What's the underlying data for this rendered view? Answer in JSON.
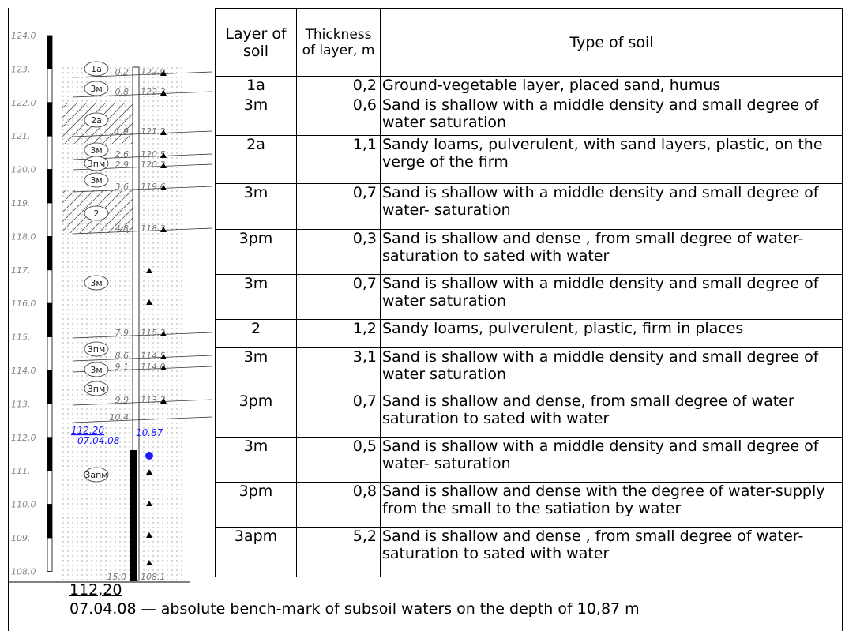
{
  "diagram": {
    "elevations": [
      "124,0",
      "123.",
      "122,0",
      "121,",
      "120,0",
      "119.",
      "118,0",
      "117.",
      "116,0",
      "115.",
      "114,0",
      "113.",
      "112,0",
      "111,",
      "110,0",
      "109.",
      "108,0"
    ],
    "layers": [
      "1a",
      "3м",
      "2a",
      "3м",
      "3пм",
      "3м",
      "2",
      "3м",
      "3пм",
      "3м",
      "3пм",
      "3апм"
    ],
    "depths": [
      {
        "depth": "0.2",
        "elevation": "122.9"
      },
      {
        "depth": "0.8",
        "elevation": "122.3"
      },
      {
        "depth": "1.9",
        "elevation": "121.2"
      },
      {
        "depth": "2.6",
        "elevation": "120.5"
      },
      {
        "depth": "2.9",
        "elevation": "120.2"
      },
      {
        "depth": "3.6",
        "elevation": "119.6"
      },
      {
        "depth": "4.8",
        "elevation": "118.3"
      },
      {
        "depth": "7.9",
        "elevation": "115.2"
      },
      {
        "depth": "8.6",
        "elevation": "114.5"
      },
      {
        "depth": "9.1",
        "elevation": "114.0"
      },
      {
        "depth": "9.9",
        "elevation": "113.2"
      },
      {
        "depth": "10.4"
      }
    ],
    "water": {
      "level": "112.20",
      "date": "07.04.08",
      "depth": "10.87"
    },
    "bottom": {
      "depth": "15.0",
      "elevation": "108.1"
    }
  },
  "table": {
    "header": [
      "Layer of soil",
      "Thickness of layer, m",
      "Type of soil"
    ],
    "rows": [
      [
        "1a",
        "0,2",
        "Ground-vegetable layer, placed sand, humus"
      ],
      [
        "3m",
        "0,6",
        "Sand is shallow with a middle density and small degree of water saturation"
      ],
      [
        "2a",
        "1,1",
        "Sandy loams, pulverulent, with sand layers, plastic, on the verge of the firm"
      ],
      [
        "3m",
        "0,7",
        "Sand is shallow with a middle density and small degree of water- saturation"
      ],
      [
        "3pm",
        "0,3",
        "Sand is shallow and dense , from small degree of water-saturation  to sated with water"
      ],
      [
        "3m",
        "0,7",
        "Sand is shallow with a middle density  and small degree of  water saturation"
      ],
      [
        "2",
        "1,2",
        "Sandy loams, pulverulent, plastic, firm in places"
      ],
      [
        "3m",
        "3,1",
        "Sand is shallow with a middle density and small degree of water saturation"
      ],
      [
        "3pm",
        "0,7",
        "Sand is shallow and dense, from small degree of water saturation  to sated with water"
      ],
      [
        "3m",
        "0,5",
        "Sand is shallow with a middle density and small degree of water- saturation"
      ],
      [
        "3pm",
        "0,8",
        "Sand is shallow and dense with the degree of water-supply from the small to the satiation by water"
      ],
      [
        "3apm",
        "5,2",
        "Sand is shallow and dense , from small degree of water-saturation  to sated with water"
      ]
    ]
  },
  "footnote": {
    "level": "112,20",
    "text": "07.04.08 — absolute bench-mark of subsoil waters on the depth of 10,87 m"
  }
}
